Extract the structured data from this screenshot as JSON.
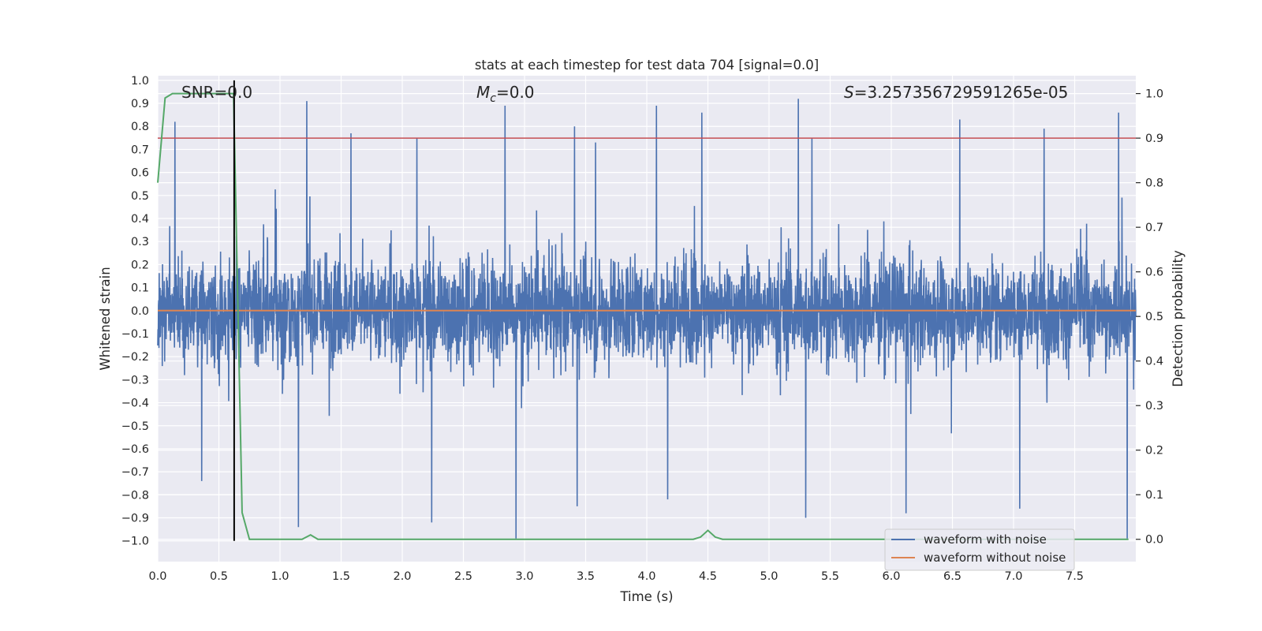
{
  "chart_data": {
    "type": "line",
    "title": "stats at each timestep for test data 704 [signal=0.0]",
    "xlabel": "Time (s)",
    "ylabel_left": "Whitened strain",
    "ylabel_right": "Detection probability",
    "xlim": [
      0.0,
      8.0
    ],
    "ylim_left": [
      -1.09,
      1.02
    ],
    "ylim_right": [
      -0.05,
      1.04
    ],
    "xticks": [
      "0.0",
      "0.5",
      "1.0",
      "1.5",
      "2.0",
      "2.5",
      "3.0",
      "3.5",
      "4.0",
      "4.5",
      "5.0",
      "5.5",
      "6.0",
      "6.5",
      "7.0",
      "7.5"
    ],
    "yticks_left": [
      "1.0",
      "0.9",
      "0.8",
      "0.7",
      "0.6",
      "0.5",
      "0.4",
      "0.3",
      "0.2",
      "0.1",
      "0.0",
      "−0.1",
      "−0.2",
      "−0.3",
      "−0.4",
      "−0.5",
      "−0.6",
      "−0.7",
      "−0.8",
      "−0.9",
      "−1.0"
    ],
    "yticks_right": [
      "1.0",
      "0.9",
      "0.8",
      "0.7",
      "0.6",
      "0.5",
      "0.4",
      "0.3",
      "0.2",
      "0.1",
      "0.0"
    ],
    "annotations": {
      "snr": "SNR=0.0",
      "mc_symbol": "M",
      "mc_sub": "c",
      "mc_value": "=0.0",
      "s_symbol": "S",
      "s_value": "=3.257356729591265e-05"
    },
    "legend": {
      "placement": "lower-right",
      "entries": [
        "waveform with noise",
        "waveform without noise"
      ]
    },
    "colors": {
      "noise": "#4c72b0",
      "clean": "#dd8452",
      "probability": "#55a868",
      "threshold": "#c44e52",
      "marker": "#000000",
      "background": "#eaeaf2",
      "grid": "#ffffff"
    },
    "series": [
      {
        "name": "waveform with noise",
        "axis": "left",
        "render": "dense-noise",
        "x_range": [
          0.0,
          8.0
        ],
        "envelope_typical": [
          -0.45,
          0.45
        ],
        "peaks_positive": [
          [
            0.14,
            0.82
          ],
          [
            1.22,
            0.91
          ],
          [
            1.58,
            0.77
          ],
          [
            2.12,
            0.75
          ],
          [
            2.84,
            0.89
          ],
          [
            3.41,
            0.8
          ],
          [
            3.58,
            0.73
          ],
          [
            4.08,
            0.89
          ],
          [
            4.45,
            0.86
          ],
          [
            5.24,
            0.92
          ],
          [
            5.35,
            0.75
          ],
          [
            6.56,
            0.83
          ],
          [
            7.25,
            0.79
          ],
          [
            7.86,
            0.86
          ]
        ],
        "peaks_negative": [
          [
            0.36,
            -0.74
          ],
          [
            1.15,
            -0.94
          ],
          [
            2.24,
            -0.92
          ],
          [
            2.93,
            -0.99
          ],
          [
            3.43,
            -0.85
          ],
          [
            4.17,
            -0.82
          ],
          [
            5.3,
            -0.9
          ],
          [
            6.12,
            -0.88
          ],
          [
            7.05,
            -0.86
          ],
          [
            7.93,
            -0.99
          ]
        ]
      },
      {
        "name": "waveform without noise",
        "axis": "left",
        "x": [
          0.0,
          8.0
        ],
        "y": [
          0.0,
          0.0
        ]
      },
      {
        "axis": "right",
        "x": [
          0.0,
          0.06,
          0.12,
          0.62,
          0.69,
          0.75,
          1.18,
          1.25,
          1.31,
          1.38,
          4.38,
          4.44,
          4.5,
          4.56,
          4.62,
          7.94
        ],
        "y": [
          0.8,
          0.99,
          1.0,
          1.0,
          0.06,
          0.0,
          0.0,
          0.01,
          0.0,
          0.0,
          0.0,
          0.005,
          0.02,
          0.005,
          0.0,
          0.0
        ]
      },
      {
        "axis": "right",
        "x": [
          0.0,
          8.0
        ],
        "y": [
          0.9,
          0.9
        ]
      }
    ],
    "vertical_marker": {
      "x": 0.625,
      "y_from": -1.0,
      "y_to": 1.0
    },
    "grid": true
  }
}
